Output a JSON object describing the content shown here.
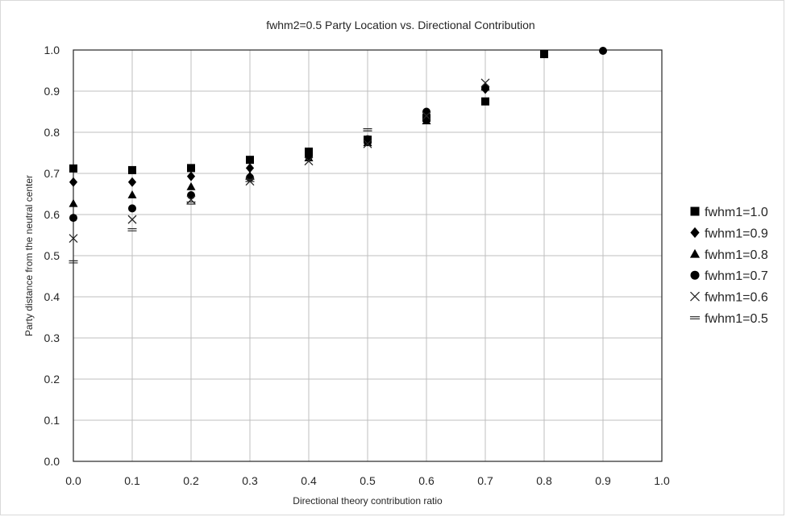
{
  "chart_data": {
    "type": "scatter",
    "title": "fwhm2=0.5 Party Location vs. Directional Contribution",
    "xlabel": "Directional theory contribution ratio",
    "ylabel": "Party distance from the neutral center",
    "xlim": [
      0,
      1
    ],
    "ylim": [
      0,
      1
    ],
    "x_ticks": [
      "0.0",
      "0.1",
      "0.2",
      "0.3",
      "0.4",
      "0.5",
      "0.6",
      "0.7",
      "0.8",
      "0.9",
      "1.0"
    ],
    "y_ticks": [
      "0.0",
      "0.1",
      "0.2",
      "0.3",
      "0.4",
      "0.5",
      "0.6",
      "0.7",
      "0.8",
      "0.9",
      "1.0"
    ],
    "grid": true,
    "legend_position": "right",
    "series": [
      {
        "name": "fwhm1=1.0",
        "marker": "square",
        "x": [
          0.0,
          0.1,
          0.2,
          0.3,
          0.4,
          0.5,
          0.6,
          0.7,
          0.8
        ],
        "y": [
          0.712,
          0.708,
          0.713,
          0.733,
          0.753,
          0.782,
          0.835,
          0.875,
          0.99
        ]
      },
      {
        "name": "fwhm1=0.9",
        "marker": "diamond",
        "x": [
          0.0,
          0.1,
          0.2,
          0.3,
          0.4,
          0.5,
          0.6,
          0.7
        ],
        "y": [
          0.679,
          0.679,
          0.693,
          0.713,
          0.745,
          0.778,
          0.84,
          0.905
        ]
      },
      {
        "name": "fwhm1=0.8",
        "marker": "triangle",
        "x": [
          0.0,
          0.1,
          0.2,
          0.3,
          0.4,
          0.5,
          0.6,
          0.7
        ],
        "y": [
          0.627,
          0.648,
          0.668,
          0.695,
          0.738,
          0.775,
          0.828,
          0.91
        ]
      },
      {
        "name": "fwhm1=0.7",
        "marker": "circle",
        "x": [
          0.0,
          0.1,
          0.2,
          0.3,
          0.4,
          0.5,
          0.6,
          0.7,
          0.9
        ],
        "y": [
          0.592,
          0.615,
          0.647,
          0.69,
          0.742,
          0.783,
          0.85,
          0.908,
          0.998
        ]
      },
      {
        "name": "fwhm1=0.6",
        "marker": "x",
        "x": [
          0.0,
          0.1,
          0.2,
          0.3,
          0.4,
          0.5,
          0.6,
          0.7
        ],
        "y": [
          0.542,
          0.588,
          0.636,
          0.681,
          0.73,
          0.772,
          0.84,
          0.92
        ]
      },
      {
        "name": "fwhm1=0.5",
        "marker": "dash",
        "x": [
          0.0,
          0.1,
          0.2,
          0.3,
          0.5
        ],
        "y": [
          0.485,
          0.563,
          0.628,
          0.683,
          0.806
        ]
      }
    ]
  }
}
